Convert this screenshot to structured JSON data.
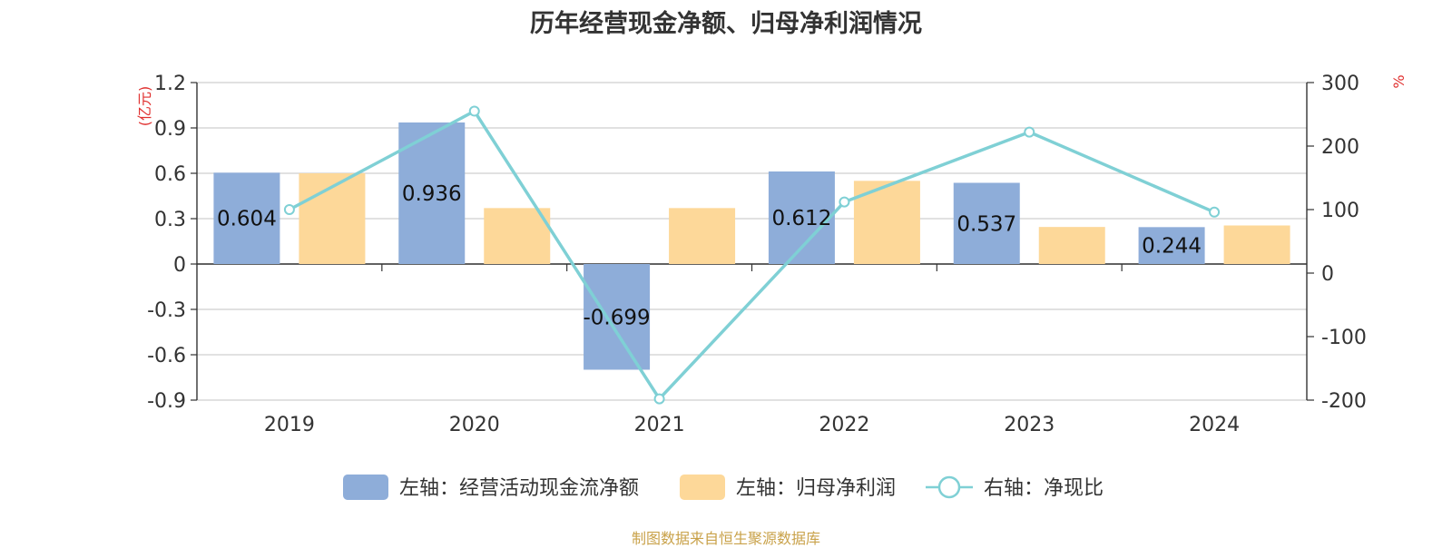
{
  "chart_data": {
    "type": "bar",
    "title": "历年经营现金净额、归母净利润情况",
    "categories": [
      "2019",
      "2020",
      "2021",
      "2022",
      "2023",
      "2024"
    ],
    "left_axis": {
      "unit": "(亿元)",
      "ylim": [
        -0.9,
        1.2
      ],
      "ticks": [
        "1.2",
        "0.9",
        "0.6",
        "0.3",
        "0",
        "-0.3",
        "-0.6",
        "-0.9"
      ]
    },
    "right_axis": {
      "unit": "%",
      "ylim": [
        -200,
        300
      ],
      "ticks": [
        "300",
        "200",
        "100",
        "0",
        "-100",
        "-200"
      ]
    },
    "series": [
      {
        "name": "左轴：经营活动现金流净额",
        "axis": "left",
        "kind": "bar",
        "color": "#8eadd9",
        "values": [
          0.604,
          0.936,
          -0.699,
          0.612,
          0.537,
          0.244
        ],
        "labels": [
          "0.604",
          "0.936",
          "-0.699",
          "0.612",
          "0.537",
          "0.244"
        ]
      },
      {
        "name": "左轴：归母净利润",
        "axis": "left",
        "kind": "bar",
        "color": "#fdd899",
        "values": [
          0.6,
          0.37,
          0.37,
          0.55,
          0.245,
          0.255
        ]
      },
      {
        "name": "右轴：净现比",
        "axis": "right",
        "kind": "line",
        "color": "#7fd0d5",
        "values": [
          100,
          255,
          -198,
          112,
          222,
          96
        ]
      }
    ],
    "grid": true,
    "legend_position": "bottom"
  },
  "source": "制图数据来自恒生聚源数据库"
}
